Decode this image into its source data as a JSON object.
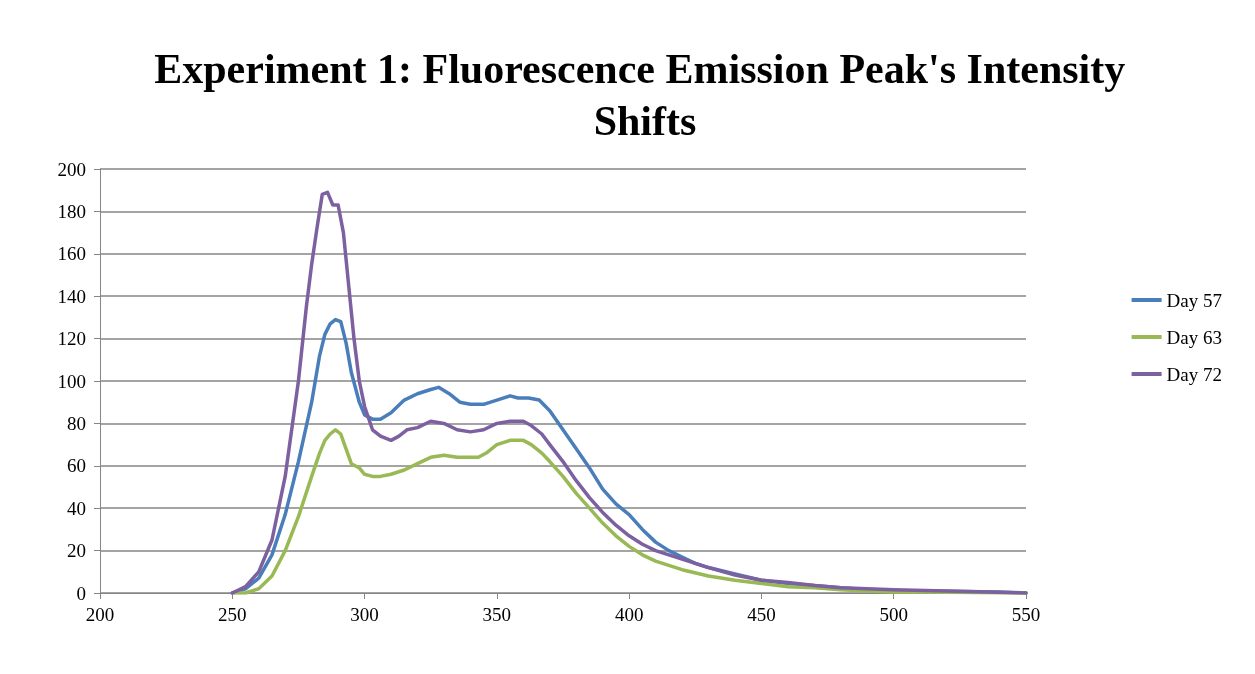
{
  "chart_data": {
    "type": "line",
    "title": "Experiment 1: Fluorescence Emission Peak's Intensity Shifts",
    "xlim": [
      200,
      550
    ],
    "xticks": [
      200,
      250,
      300,
      350,
      400,
      450,
      500,
      550
    ],
    "ylim": [
      0,
      200
    ],
    "yticks": [
      0,
      20,
      40,
      60,
      80,
      100,
      120,
      140,
      160,
      180,
      200
    ],
    "grid": "y",
    "legend": "right",
    "marker": "none",
    "line_style": "solid",
    "series": [
      {
        "name": "Day 57",
        "color": "#4a7ebb",
        "x": [
          250,
          255,
          260,
          265,
          270,
          275,
          280,
          283,
          285,
          287,
          289,
          291,
          293,
          295,
          298,
          300,
          303,
          306,
          310,
          315,
          320,
          325,
          328,
          332,
          336,
          340,
          345,
          350,
          355,
          358,
          362,
          366,
          370,
          375,
          380,
          385,
          390,
          395,
          400,
          405,
          410,
          415,
          420,
          425,
          430,
          440,
          450,
          460,
          470,
          480,
          490,
          500,
          520,
          540,
          550
        ],
        "values": [
          0,
          2,
          7,
          18,
          37,
          62,
          90,
          112,
          122,
          127,
          129,
          128,
          118,
          104,
          90,
          84,
          82,
          82,
          85,
          91,
          94,
          96,
          97,
          94,
          90,
          89,
          89,
          91,
          93,
          92,
          92,
          91,
          86,
          77,
          68,
          59,
          49,
          42,
          37,
          30,
          24,
          20,
          17,
          14,
          12,
          9,
          6,
          4.5,
          3.5,
          2.5,
          1.5,
          1,
          0.8,
          0.5,
          0
        ]
      },
      {
        "name": "Day 63",
        "color": "#98b954",
        "x": [
          250,
          255,
          260,
          265,
          270,
          275,
          280,
          283,
          285,
          287,
          289,
          291,
          293,
          295,
          298,
          300,
          303,
          306,
          310,
          315,
          320,
          325,
          330,
          335,
          340,
          343,
          346,
          350,
          355,
          360,
          363,
          367,
          370,
          375,
          380,
          385,
          390,
          395,
          400,
          405,
          410,
          415,
          420,
          430,
          440,
          450,
          460,
          470,
          480,
          490,
          500,
          520,
          550
        ],
        "values": [
          0,
          0,
          2,
          8,
          20,
          36,
          55,
          66,
          72,
          75,
          77,
          75,
          68,
          61,
          59,
          56,
          55,
          55,
          56,
          58,
          61,
          64,
          65,
          64,
          64,
          64,
          66,
          70,
          72,
          72,
          70,
          66,
          62,
          55,
          47,
          40,
          33,
          27,
          22,
          18,
          15,
          13,
          11,
          8,
          6,
          4.5,
          3,
          2.5,
          1.5,
          1,
          0.5,
          0.3,
          0
        ]
      },
      {
        "name": "Day 72",
        "color": "#7d60a0",
        "x": [
          250,
          255,
          260,
          265,
          270,
          275,
          278,
          280,
          282,
          284,
          286,
          288,
          290,
          292,
          294,
          296,
          298,
          300,
          303,
          306,
          310,
          313,
          316,
          320,
          325,
          330,
          335,
          340,
          345,
          350,
          355,
          360,
          363,
          367,
          370,
          375,
          380,
          385,
          390,
          395,
          400,
          405,
          410,
          415,
          420,
          430,
          440,
          450,
          460,
          470,
          480,
          490,
          500,
          520,
          550
        ],
        "values": [
          0,
          3,
          10,
          25,
          55,
          100,
          135,
          155,
          172,
          188,
          189,
          183,
          183,
          170,
          145,
          120,
          100,
          88,
          77,
          74,
          72,
          74,
          77,
          78,
          81,
          80,
          77,
          76,
          77,
          80,
          81,
          81,
          79,
          75,
          70,
          62,
          53,
          45,
          38,
          32,
          27,
          23,
          20,
          18,
          16,
          12,
          8.5,
          6,
          5,
          3.5,
          2.5,
          2,
          1.5,
          1,
          0
        ]
      }
    ]
  }
}
